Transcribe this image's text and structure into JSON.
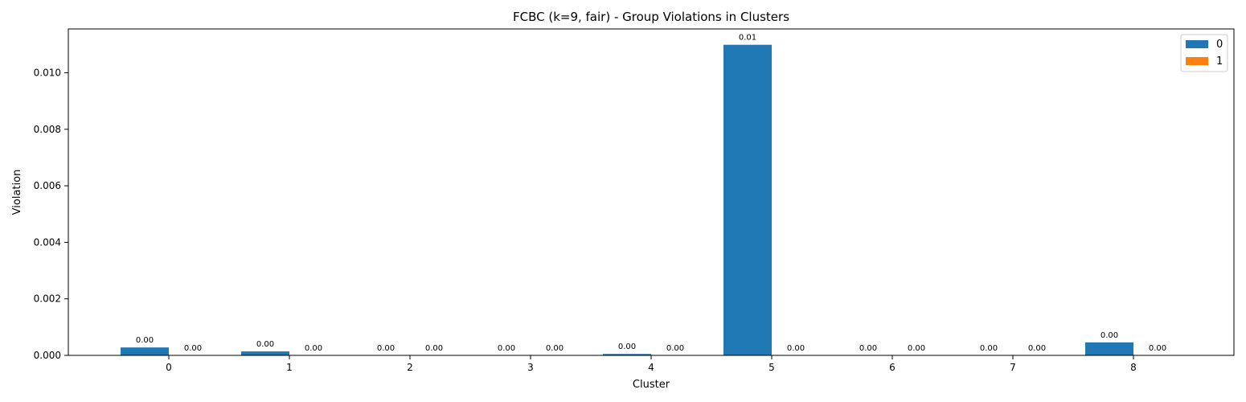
{
  "chart_data": {
    "type": "bar",
    "title": "FCBC (k=9, fair) - Group Violations in Clusters",
    "xlabel": "Cluster",
    "ylabel": "Violation",
    "categories": [
      "0",
      "1",
      "2",
      "3",
      "4",
      "5",
      "6",
      "7",
      "8"
    ],
    "series": [
      {
        "name": "0",
        "color": "#1f77b4",
        "values": [
          0.00028,
          0.00014,
          0.0,
          0.0,
          5e-05,
          0.01099,
          0.0,
          0.0,
          0.00046
        ],
        "labels": [
          "0.00",
          "0.00",
          "0.00",
          "0.00",
          "0.00",
          "0.01",
          "0.00",
          "0.00",
          "0.00"
        ]
      },
      {
        "name": "1",
        "color": "#ff7f0e",
        "values": [
          0,
          0,
          0,
          0,
          0,
          0,
          0,
          0,
          0
        ],
        "labels": [
          "0.00",
          "0.00",
          "0.00",
          "0.00",
          "0.00",
          "0.00",
          "0.00",
          "0.00",
          "0.00"
        ]
      }
    ],
    "ylim": [
      0,
      0.01155
    ],
    "yticks": [
      0.0,
      0.002,
      0.004,
      0.006,
      0.008,
      0.01
    ],
    "ytick_labels": [
      "0.000",
      "0.002",
      "0.004",
      "0.006",
      "0.008",
      "0.010"
    ],
    "grid": false,
    "legend_position": "top-right"
  }
}
